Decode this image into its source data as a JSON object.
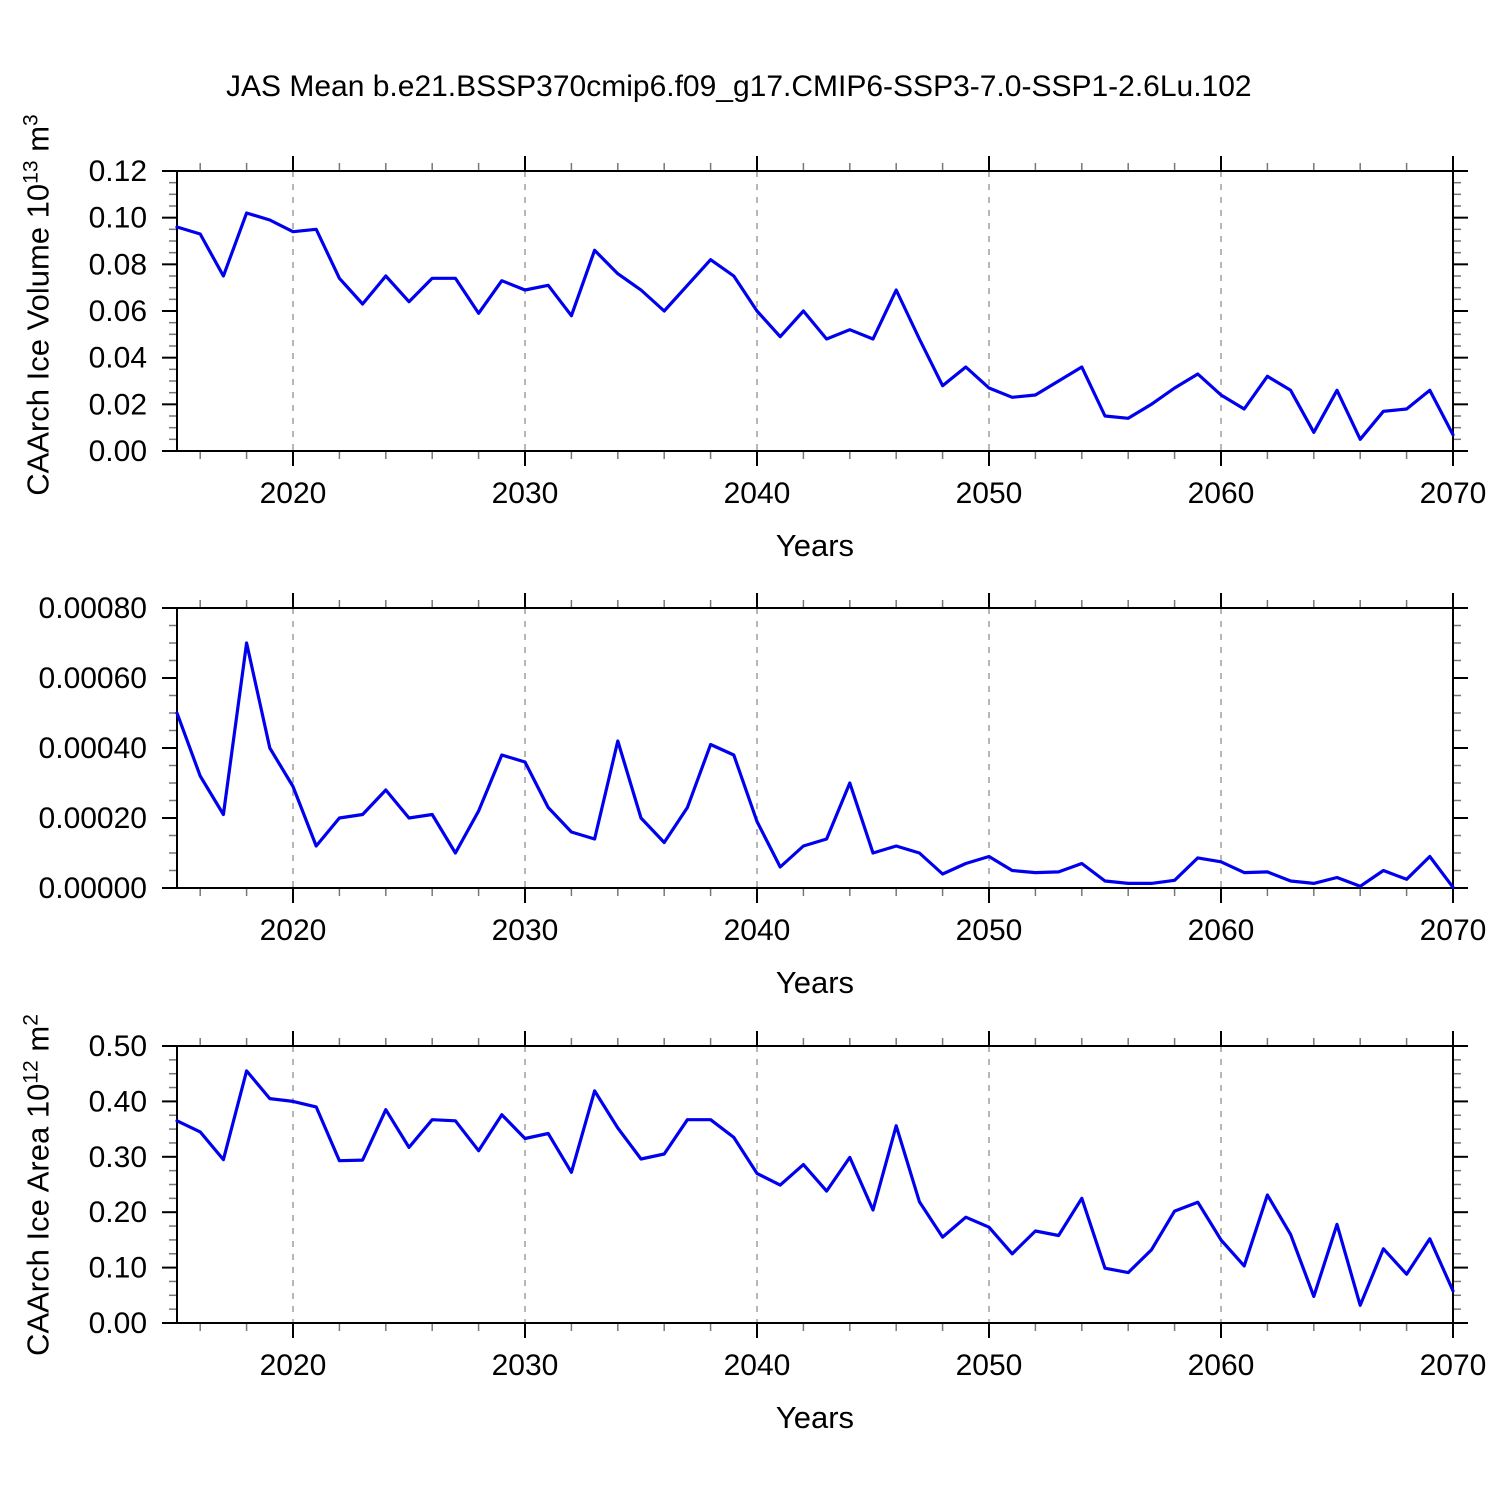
{
  "title": "JAS Mean b.e21.BSSP370cmip6.f09_g17.CMIP6-SSP3-7.0-SSP1-2.6Lu.102",
  "line_color": "#0000ee",
  "grid_color": "#909090",
  "chart_data": [
    {
      "type": "line",
      "name": "caarch-ice-volume",
      "xlabel": "Years",
      "ylabel_text": "CAArch Ice Volume 10¹³ m³",
      "ylabel_parts": [
        {
          "t": "CAArch Ice Volume 10",
          "sup": false
        },
        {
          "t": "13",
          "sup": true
        },
        {
          "t": " m",
          "sup": false
        },
        {
          "t": "3",
          "sup": true
        }
      ],
      "xlim": [
        2015,
        2070
      ],
      "ylim": [
        0,
        0.12
      ],
      "xticks": [
        2020,
        2030,
        2040,
        2050,
        2060,
        2070
      ],
      "xtick_labels": [
        "2020",
        "2030",
        "2040",
        "2050",
        "2060",
        "2070"
      ],
      "xminor_step": 2,
      "grid_years": [
        2020,
        2030,
        2040,
        2050,
        2060
      ],
      "ytick_values": [
        0.0,
        0.02,
        0.04,
        0.06,
        0.08,
        0.1,
        0.12
      ],
      "ytick_labels": [
        "0.00",
        "0.02",
        "0.04",
        "0.06",
        "0.08",
        "0.10",
        "0.12"
      ],
      "yminor_step": 0.005,
      "x": [
        2015,
        2016,
        2017,
        2018,
        2019,
        2020,
        2021,
        2022,
        2023,
        2024,
        2025,
        2026,
        2027,
        2028,
        2029,
        2030,
        2031,
        2032,
        2033,
        2034,
        2035,
        2036,
        2037,
        2038,
        2039,
        2040,
        2041,
        2042,
        2043,
        2044,
        2045,
        2046,
        2047,
        2048,
        2049,
        2050,
        2051,
        2052,
        2053,
        2054,
        2055,
        2056,
        2057,
        2058,
        2059,
        2060,
        2061,
        2062,
        2063,
        2064,
        2065,
        2066,
        2067,
        2068,
        2069,
        2070
      ],
      "values": [
        0.096,
        0.093,
        0.075,
        0.102,
        0.099,
        0.094,
        0.095,
        0.074,
        0.063,
        0.075,
        0.064,
        0.074,
        0.074,
        0.059,
        0.073,
        0.069,
        0.071,
        0.058,
        0.086,
        0.076,
        0.069,
        0.06,
        0.071,
        0.082,
        0.075,
        0.06,
        0.049,
        0.06,
        0.048,
        0.052,
        0.048,
        0.069,
        0.048,
        0.028,
        0.036,
        0.027,
        0.023,
        0.024,
        0.03,
        0.036,
        0.015,
        0.014,
        0.02,
        0.027,
        0.033,
        0.024,
        0.018,
        0.032,
        0.026,
        0.008,
        0.026,
        0.005,
        0.017,
        0.018,
        0.026,
        0.007
      ]
    },
    {
      "type": "line",
      "name": "caarch-ice-middle-series",
      "xlabel": "Years",
      "ylabel_text": "",
      "ylabel_parts": [],
      "xlim": [
        2015,
        2070
      ],
      "ylim": [
        0,
        0.0008
      ],
      "xticks": [
        2020,
        2030,
        2040,
        2050,
        2060,
        2070
      ],
      "xtick_labels": [
        "2020",
        "2030",
        "2040",
        "2050",
        "2060",
        "2070"
      ],
      "xminor_step": 2,
      "grid_years": [
        2020,
        2030,
        2040,
        2050,
        2060
      ],
      "ytick_values": [
        0.0,
        0.0002,
        0.0004,
        0.0006,
        0.0008
      ],
      "ytick_labels": [
        "0.00000",
        "0.00020",
        "0.00040",
        "0.00060",
        "0.00080"
      ],
      "yminor_step": 5e-05,
      "x": [
        2015,
        2016,
        2017,
        2018,
        2019,
        2020,
        2021,
        2022,
        2023,
        2024,
        2025,
        2026,
        2027,
        2028,
        2029,
        2030,
        2031,
        2032,
        2033,
        2034,
        2035,
        2036,
        2037,
        2038,
        2039,
        2040,
        2041,
        2042,
        2043,
        2044,
        2045,
        2046,
        2047,
        2048,
        2049,
        2050,
        2051,
        2052,
        2053,
        2054,
        2055,
        2056,
        2057,
        2058,
        2059,
        2060,
        2061,
        2062,
        2063,
        2064,
        2065,
        2066,
        2067,
        2068,
        2069,
        2070
      ],
      "values": [
        0.0005,
        0.00032,
        0.00021,
        0.0007,
        0.0004,
        0.00029,
        0.00012,
        0.0002,
        0.00021,
        0.00028,
        0.0002,
        0.00021,
        0.0001,
        0.00022,
        0.00038,
        0.00036,
        0.00023,
        0.00016,
        0.00014,
        0.00042,
        0.0002,
        0.00013,
        0.00023,
        0.00041,
        0.00038,
        0.00019,
        6e-05,
        0.00012,
        0.00014,
        0.0003,
        0.0001,
        0.00012,
        0.0001,
        4e-05,
        7e-05,
        9e-05,
        5e-05,
        4.4e-05,
        4.6e-05,
        7e-05,
        2e-05,
        1.3e-05,
        1.3e-05,
        2.2e-05,
        8.6e-05,
        7.5e-05,
        4.4e-05,
        4.6e-05,
        2e-05,
        1.3e-05,
        3e-05,
        5e-06,
        5e-05,
        2.5e-05,
        9e-05,
        2e-06
      ]
    },
    {
      "type": "line",
      "name": "caarch-ice-area",
      "xlabel": "Years",
      "ylabel_text": "CAArch Ice Area 10¹² m²",
      "ylabel_parts": [
        {
          "t": "CAArch Ice Area 10",
          "sup": false
        },
        {
          "t": "12",
          "sup": true
        },
        {
          "t": " m",
          "sup": false
        },
        {
          "t": "2",
          "sup": true
        }
      ],
      "xlim": [
        2015,
        2070
      ],
      "ylim": [
        0,
        0.5
      ],
      "xticks": [
        2020,
        2030,
        2040,
        2050,
        2060,
        2070
      ],
      "xtick_labels": [
        "2020",
        "2030",
        "2040",
        "2050",
        "2060",
        "2070"
      ],
      "xminor_step": 2,
      "grid_years": [
        2020,
        2030,
        2040,
        2050,
        2060
      ],
      "ytick_values": [
        0.0,
        0.1,
        0.2,
        0.3,
        0.4,
        0.5
      ],
      "ytick_labels": [
        "0.00",
        "0.10",
        "0.20",
        "0.30",
        "0.40",
        "0.50"
      ],
      "yminor_step": 0.025,
      "x": [
        2015,
        2016,
        2017,
        2018,
        2019,
        2020,
        2021,
        2022,
        2023,
        2024,
        2025,
        2026,
        2027,
        2028,
        2029,
        2030,
        2031,
        2032,
        2033,
        2034,
        2035,
        2036,
        2037,
        2038,
        2039,
        2040,
        2041,
        2042,
        2043,
        2044,
        2045,
        2046,
        2047,
        2048,
        2049,
        2050,
        2051,
        2052,
        2053,
        2054,
        2055,
        2056,
        2057,
        2058,
        2059,
        2060,
        2061,
        2062,
        2063,
        2064,
        2065,
        2066,
        2067,
        2068,
        2069,
        2070
      ],
      "values": [
        0.365,
        0.345,
        0.295,
        0.455,
        0.405,
        0.4,
        0.39,
        0.293,
        0.294,
        0.385,
        0.317,
        0.367,
        0.365,
        0.311,
        0.376,
        0.333,
        0.342,
        0.272,
        0.419,
        0.352,
        0.296,
        0.305,
        0.367,
        0.367,
        0.335,
        0.27,
        0.249,
        0.286,
        0.238,
        0.299,
        0.204,
        0.356,
        0.219,
        0.155,
        0.191,
        0.173,
        0.125,
        0.166,
        0.158,
        0.225,
        0.099,
        0.091,
        0.132,
        0.202,
        0.218,
        0.15,
        0.103,
        0.231,
        0.16,
        0.048,
        0.178,
        0.032,
        0.134,
        0.088,
        0.152,
        0.058
      ]
    }
  ]
}
